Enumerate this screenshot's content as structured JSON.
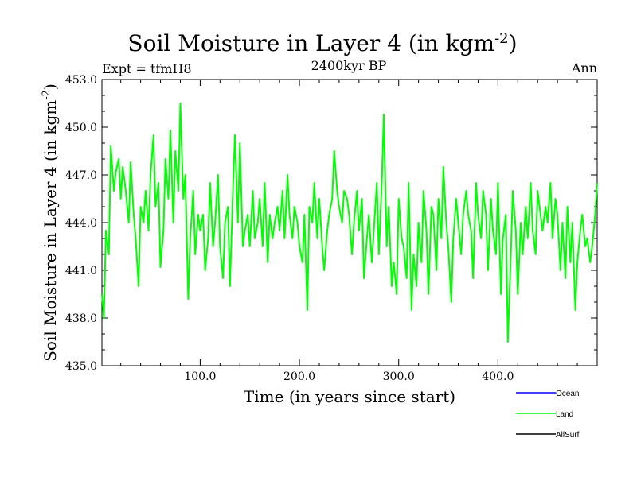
{
  "chart_data": {
    "type": "line",
    "title": "Soil Moisture in Layer 4 (in kgm",
    "title_exponent": "-2",
    "title_close": ")",
    "subtitle": "2400kyr BP",
    "left_label": "Expt = tfmH8",
    "right_label": "Ann",
    "xlabel": "Time (in years since start)",
    "ylabel": "Soil Moisture in Layer 4 (in kgm",
    "ylabel_exponent": "-2",
    "ylabel_close": ")",
    "xlim": [
      1,
      500
    ],
    "ylim": [
      435.0,
      453.0
    ],
    "x_ticks": [
      100,
      200,
      300,
      400
    ],
    "x_tick_labels": [
      "100.0",
      "200.0",
      "300.0",
      "400.0"
    ],
    "y_ticks": [
      435,
      438,
      441,
      444,
      447,
      450,
      453
    ],
    "y_tick_labels": [
      "435.0",
      "438.0",
      "441.0",
      "444.0",
      "447.0",
      "450.0",
      "453.0"
    ],
    "legend": [
      {
        "name": "Ocean",
        "color": "#0000ff"
      },
      {
        "name": "Land",
        "color": "#00ff00"
      },
      {
        "name": "AllSurf",
        "color": "#000000"
      }
    ],
    "series": [
      {
        "name": "Land",
        "color": "#00ff00",
        "x": [
          1,
          3,
          5,
          8,
          10,
          13,
          15,
          18,
          20,
          22,
          25,
          28,
          30,
          33,
          35,
          38,
          40,
          43,
          45,
          48,
          50,
          53,
          55,
          58,
          60,
          63,
          65,
          68,
          70,
          73,
          75,
          78,
          80,
          83,
          85,
          88,
          90,
          93,
          95,
          98,
          100,
          103,
          105,
          108,
          110,
          113,
          115,
          118,
          120,
          123,
          125,
          128,
          130,
          133,
          135,
          138,
          140,
          143,
          145,
          148,
          150,
          153,
          155,
          158,
          160,
          163,
          165,
          168,
          170,
          173,
          175,
          178,
          180,
          183,
          185,
          188,
          190,
          193,
          195,
          198,
          200,
          203,
          205,
          208,
          210,
          213,
          215,
          218,
          220,
          223,
          225,
          228,
          230,
          233,
          235,
          238,
          240,
          243,
          245,
          248,
          250,
          253,
          255,
          258,
          260,
          263,
          265,
          268,
          270,
          273,
          275,
          278,
          280,
          283,
          285,
          288,
          290,
          293,
          295,
          298,
          300,
          303,
          305,
          308,
          310,
          313,
          315,
          318,
          320,
          323,
          325,
          328,
          330,
          333,
          335,
          338,
          340,
          343,
          345,
          348,
          350,
          353,
          355,
          358,
          360,
          363,
          365,
          368,
          370,
          373,
          375,
          378,
          380,
          383,
          385,
          388,
          390,
          393,
          395,
          398,
          400,
          403,
          405,
          408,
          410,
          413,
          415,
          418,
          420,
          423,
          425,
          428,
          430,
          433,
          435,
          438,
          440,
          443,
          445,
          448,
          450,
          453,
          455,
          458,
          460,
          463,
          465,
          468,
          470,
          473,
          475,
          478,
          480,
          483,
          485,
          488,
          490,
          493,
          495,
          498,
          500
        ],
        "values": [
          439.5,
          438.0,
          443.5,
          442.0,
          448.8,
          446.0,
          447.2,
          448.0,
          445.5,
          447.5,
          446.0,
          444.0,
          447.8,
          444.5,
          443.0,
          440.0,
          445.0,
          444.0,
          446.0,
          443.5,
          447.0,
          449.5,
          445.0,
          446.5,
          441.2,
          443.5,
          448.0,
          445.5,
          449.8,
          444.0,
          448.5,
          446.0,
          451.5,
          445.5,
          447.0,
          439.2,
          443.0,
          446.0,
          442.0,
          444.5,
          443.5,
          444.5,
          441.0,
          443.0,
          446.5,
          442.5,
          444.0,
          447.0,
          442.5,
          440.5,
          444.0,
          445.0,
          440.0,
          446.0,
          449.5,
          444.0,
          449.0,
          442.5,
          443.5,
          444.5,
          442.5,
          446.0,
          443.0,
          444.0,
          445.5,
          442.5,
          446.5,
          441.5,
          444.5,
          443.0,
          444.0,
          445.0,
          443.5,
          446.0,
          443.0,
          447.0,
          444.5,
          443.0,
          445.0,
          444.0,
          442.5,
          441.5,
          444.5,
          438.5,
          445.0,
          444.0,
          446.5,
          443.0,
          445.5,
          442.5,
          441.0,
          443.5,
          444.5,
          445.5,
          448.5,
          446.0,
          445.0,
          444.0,
          446.0,
          445.5,
          444.5,
          442.0,
          444.0,
          446.0,
          443.5,
          445.5,
          440.5,
          443.0,
          444.5,
          441.5,
          443.5,
          446.5,
          442.0,
          446.5,
          450.8,
          442.5,
          445.0,
          440.0,
          441.5,
          439.5,
          445.5,
          443.0,
          442.5,
          440.5,
          446.5,
          438.5,
          442.0,
          440.0,
          444.0,
          441.5,
          446.0,
          443.5,
          439.5,
          445.0,
          444.5,
          441.0,
          445.5,
          443.0,
          447.5,
          444.0,
          442.5,
          439.0,
          443.0,
          445.5,
          444.0,
          442.0,
          444.5,
          446.0,
          444.5,
          443.5,
          440.5,
          446.5,
          444.5,
          443.0,
          446.0,
          444.5,
          441.0,
          445.5,
          443.5,
          442.0,
          446.5,
          439.5,
          443.0,
          444.5,
          436.5,
          442.0,
          446.0,
          443.5,
          439.5,
          444.0,
          442.0,
          445.0,
          443.0,
          446.5,
          443.5,
          442.0,
          446.0,
          444.5,
          443.5,
          445.0,
          444.0,
          446.5,
          443.0,
          445.5,
          444.5,
          441.0,
          444.0,
          440.5,
          445.0,
          441.5,
          444.0,
          438.5,
          441.5,
          443.5,
          444.5,
          442.5,
          443.0,
          441.5,
          442.5,
          444.5,
          446.5
        ]
      }
    ]
  }
}
